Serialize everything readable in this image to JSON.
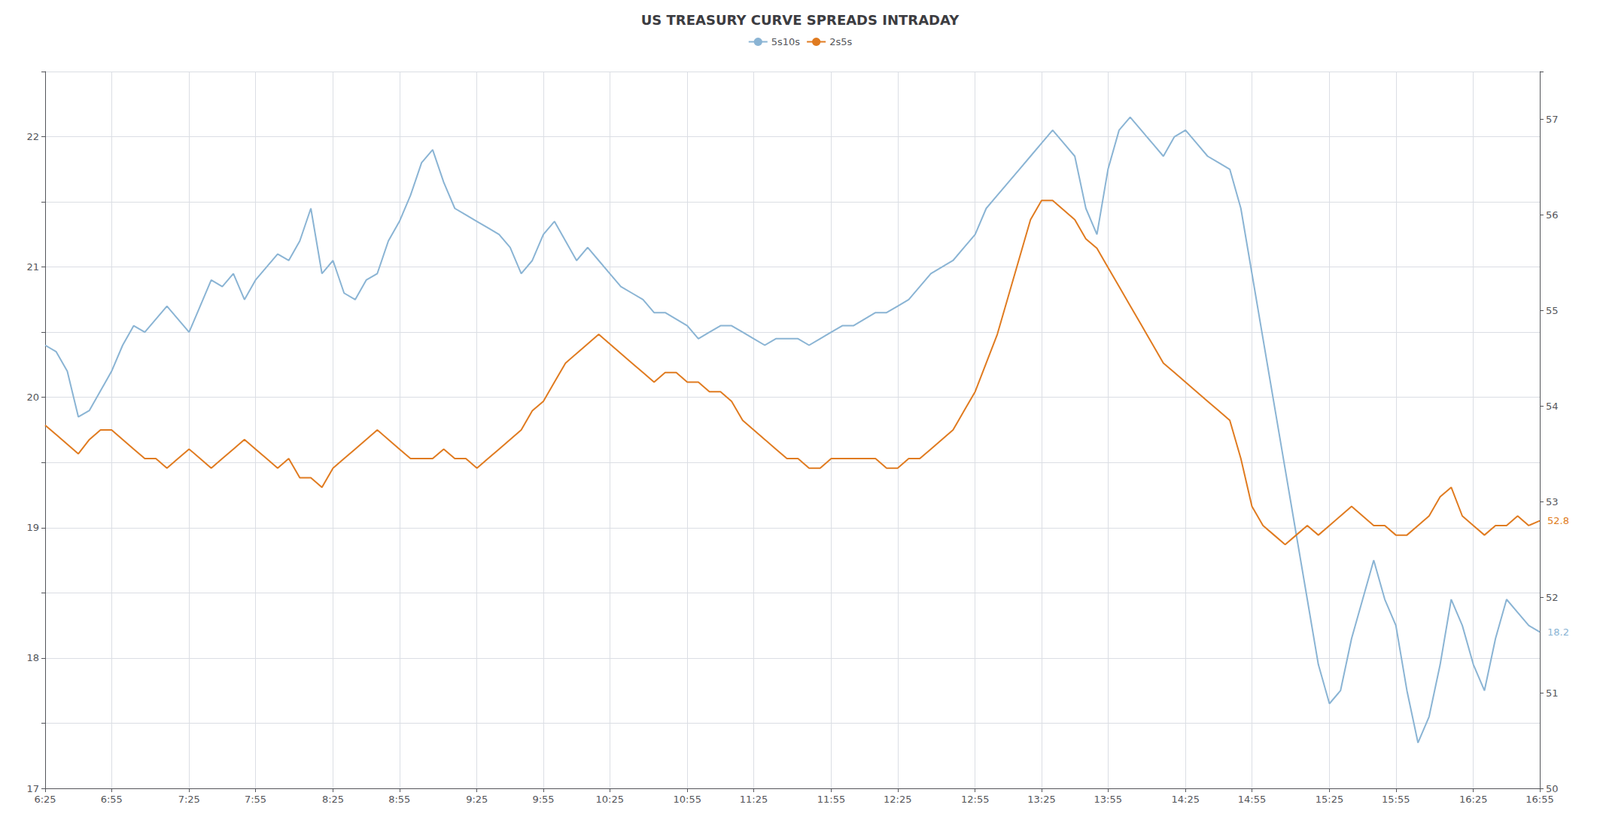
{
  "chart_data": {
    "type": "line",
    "title": "US TREASURY CURVE SPREADS INTRADAY",
    "categories": [
      "6:25",
      null,
      null,
      null,
      null,
      null,
      "6:55",
      null,
      null,
      null,
      null,
      null,
      null,
      "7:25",
      null,
      null,
      null,
      null,
      null,
      "7:55",
      null,
      null,
      null,
      null,
      null,
      null,
      "8:25",
      null,
      null,
      null,
      null,
      null,
      "8:55",
      null,
      null,
      null,
      null,
      null,
      null,
      "9:25",
      null,
      null,
      null,
      null,
      null,
      "9:55",
      null,
      null,
      null,
      null,
      null,
      "10:25",
      null,
      null,
      null,
      null,
      null,
      null,
      "10:55",
      null,
      null,
      null,
      null,
      null,
      "11:25",
      null,
      null,
      null,
      null,
      null,
      null,
      "11:55",
      null,
      null,
      null,
      null,
      null,
      "12:25",
      null,
      null,
      null,
      null,
      null,
      null,
      "12:55",
      null,
      null,
      null,
      null,
      null,
      "13:25",
      null,
      null,
      null,
      null,
      null,
      "13:55",
      null,
      null,
      null,
      null,
      null,
      null,
      "14:25",
      null,
      null,
      null,
      null,
      null,
      "14:55",
      null,
      null,
      null,
      null,
      null,
      null,
      "15:25",
      null,
      null,
      null,
      null,
      null,
      "15:55",
      null,
      null,
      null,
      null,
      null,
      null,
      "16:25",
      null,
      null,
      null,
      null,
      null,
      "16:55"
    ],
    "series": [
      {
        "name": "5s10s",
        "color": "#8ab4d4",
        "values": [
          20.4,
          20.35,
          20.2,
          19.85,
          19.9,
          20.05,
          20.2,
          20.4,
          20.55,
          20.5,
          20.6,
          20.7,
          20.6,
          20.5,
          20.7,
          20.9,
          20.85,
          20.95,
          20.75,
          20.9,
          21.0,
          21.1,
          21.05,
          21.2,
          21.45,
          20.95,
          21.05,
          20.8,
          20.75,
          20.9,
          20.95,
          21.2,
          21.35,
          21.55,
          21.8,
          21.9,
          21.65,
          21.45,
          21.4,
          21.35,
          21.3,
          21.25,
          21.15,
          20.95,
          21.05,
          21.25,
          21.35,
          21.2,
          21.05,
          21.15,
          21.05,
          20.95,
          20.85,
          20.8,
          20.75,
          20.65,
          20.65,
          20.6,
          20.55,
          20.45,
          20.5,
          20.55,
          20.55,
          20.5,
          20.45,
          20.4,
          20.45,
          20.45,
          20.45,
          20.4,
          20.45,
          20.5,
          20.55,
          20.55,
          20.6,
          20.65,
          20.65,
          20.7,
          20.75,
          20.85,
          20.95,
          21.0,
          21.05,
          21.15,
          21.25,
          21.45,
          21.55,
          21.65,
          21.75,
          21.85,
          21.95,
          22.05,
          21.95,
          21.85,
          21.45,
          21.25,
          21.75,
          22.05,
          22.15,
          22.05,
          21.95,
          21.85,
          22.0,
          22.05,
          21.95,
          21.85,
          21.8,
          21.75,
          21.45,
          20.95,
          20.45,
          19.95,
          19.45,
          18.95,
          18.45,
          17.95,
          17.65,
          17.75,
          18.15,
          18.45,
          18.75,
          18.45,
          18.25,
          17.75,
          17.35,
          17.55,
          17.95,
          18.45,
          18.25,
          17.95,
          17.75,
          18.15,
          18.45,
          18.35,
          18.25,
          18.2
        ]
      },
      {
        "name": "2s5s",
        "color": "#e07b20",
        "axis": "y2",
        "values": [
          53.8,
          53.7,
          53.6,
          53.5,
          53.65,
          53.75,
          53.75,
          53.65,
          53.55,
          53.45,
          53.45,
          53.35,
          53.45,
          53.55,
          53.45,
          53.35,
          53.45,
          53.55,
          53.65,
          53.55,
          53.45,
          53.35,
          53.45,
          53.25,
          53.25,
          53.15,
          53.35,
          53.45,
          53.55,
          53.65,
          53.75,
          53.65,
          53.55,
          53.45,
          53.45,
          53.45,
          53.55,
          53.45,
          53.45,
          53.35,
          53.45,
          53.55,
          53.65,
          53.75,
          53.95,
          54.05,
          54.25,
          54.45,
          54.55,
          54.65,
          54.75,
          54.65,
          54.55,
          54.45,
          54.35,
          54.25,
          54.35,
          54.35,
          54.25,
          54.25,
          54.15,
          54.15,
          54.05,
          53.85,
          53.75,
          53.65,
          53.55,
          53.45,
          53.45,
          53.35,
          53.35,
          53.45,
          53.45,
          53.45,
          53.45,
          53.45,
          53.35,
          53.35,
          53.45,
          53.45,
          53.55,
          53.65,
          53.75,
          53.95,
          54.15,
          54.45,
          54.75,
          55.15,
          55.55,
          55.95,
          56.15,
          56.15,
          56.05,
          55.95,
          55.75,
          55.65,
          55.45,
          55.25,
          55.05,
          54.85,
          54.65,
          54.45,
          54.35,
          54.25,
          54.15,
          54.05,
          53.95,
          53.85,
          53.45,
          52.95,
          52.75,
          52.65,
          52.55,
          52.65,
          52.75,
          52.65,
          52.75,
          52.85,
          52.95,
          52.85,
          52.75,
          52.75,
          52.65,
          52.65,
          52.75,
          52.85,
          53.05,
          53.15,
          52.85,
          52.75,
          52.65,
          52.75,
          52.75,
          52.85,
          52.75,
          52.8
        ]
      }
    ],
    "ylim": [
      17.0,
      22.5
    ],
    "yticks": [
      17,
      {
        "value": 17.5,
        "label": ""
      },
      18,
      {
        "value": 18.5,
        "label": ""
      },
      19,
      {
        "value": 19.5,
        "label": ""
      },
      20,
      {
        "value": 20.5,
        "label": ""
      },
      21,
      {
        "value": 21.5,
        "label": ""
      },
      22,
      {
        "value": 22.5,
        "label": ""
      }
    ],
    "y2lim": [
      50.0,
      57.5
    ],
    "y2ticks": [
      50,
      51,
      52,
      53,
      54,
      55,
      56,
      57
    ],
    "grid": true,
    "legend": "top",
    "annotations": [
      {
        "text": "18.2",
        "series": "5s10s"
      },
      {
        "text": "52.8",
        "series": "2s5s"
      }
    ]
  }
}
